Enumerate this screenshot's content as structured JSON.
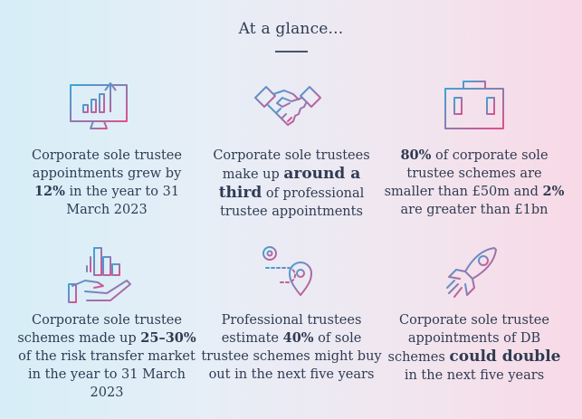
{
  "heading": "At a glance...",
  "colors": {
    "gradient_left": "#d6eef7",
    "gradient_right": "#f8d9e6",
    "icon_blue": "#3aa6d6",
    "icon_pink": "#e24f8c",
    "text": "#2f3b52"
  },
  "stats": [
    {
      "icon": "monitor-chart-icon",
      "parts": [
        "Corporate sole trustee appointments grew by ",
        "12%",
        " in the year to 31 March 2023"
      ]
    },
    {
      "icon": "handshake-icon",
      "parts": [
        "Corporate sole trustees make up ",
        "around a third",
        " of professional trustee appointments"
      ]
    },
    {
      "icon": "briefcase-icon",
      "parts": [
        "80%",
        " of corporate sole trustee schemes are smaller than £50m and ",
        "2%",
        " are greater than £1bn"
      ]
    },
    {
      "icon": "hand-growth-chart-icon",
      "parts": [
        "Corporate sole trustee schemes made up ",
        "25–30%",
        " of the risk transfer market in the year to 31 March 2023"
      ]
    },
    {
      "icon": "route-pin-icon",
      "parts": [
        "Professional trustees estimate ",
        "40%",
        " of sole trustee schemes might buy out in the next five years"
      ]
    },
    {
      "icon": "rocket-icon",
      "parts": [
        "Corporate sole trustee appointments of DB schemes ",
        "could double",
        " in the next five years"
      ]
    }
  ]
}
